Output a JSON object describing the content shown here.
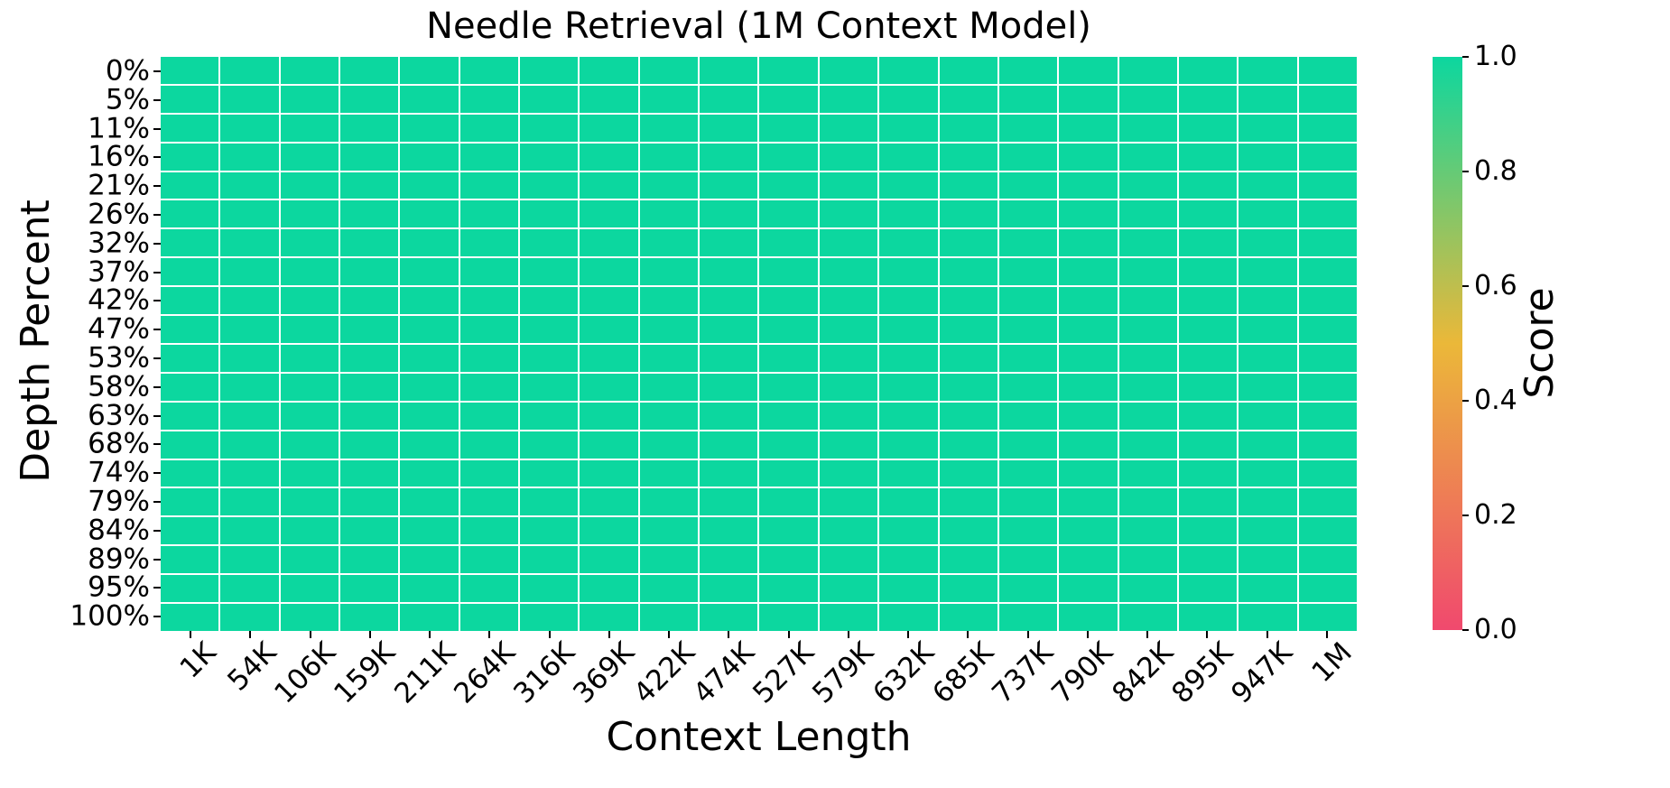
{
  "chart_data": {
    "type": "heatmap",
    "title": "Needle Retrieval (1M Context Model)",
    "xlabel": "Context Length",
    "ylabel": "Depth Percent",
    "x_categories": [
      "1K",
      "54K",
      "106K",
      "159K",
      "211K",
      "264K",
      "316K",
      "369K",
      "422K",
      "474K",
      "527K",
      "579K",
      "632K",
      "685K",
      "737K",
      "790K",
      "842K",
      "895K",
      "947K",
      "1M"
    ],
    "y_categories": [
      "0%",
      "5%",
      "11%",
      "16%",
      "21%",
      "26%",
      "32%",
      "37%",
      "42%",
      "47%",
      "53%",
      "58%",
      "63%",
      "68%",
      "74%",
      "79%",
      "84%",
      "89%",
      "95%",
      "100%"
    ],
    "values": [
      [
        1.0,
        1.0,
        1.0,
        1.0,
        1.0,
        1.0,
        1.0,
        1.0,
        1.0,
        1.0,
        1.0,
        1.0,
        1.0,
        1.0,
        1.0,
        1.0,
        1.0,
        1.0,
        1.0,
        1.0
      ],
      [
        1.0,
        1.0,
        1.0,
        1.0,
        1.0,
        1.0,
        1.0,
        1.0,
        1.0,
        1.0,
        1.0,
        1.0,
        1.0,
        1.0,
        1.0,
        1.0,
        1.0,
        1.0,
        1.0,
        1.0
      ],
      [
        1.0,
        1.0,
        1.0,
        1.0,
        1.0,
        1.0,
        1.0,
        1.0,
        1.0,
        1.0,
        1.0,
        1.0,
        1.0,
        1.0,
        1.0,
        1.0,
        1.0,
        1.0,
        1.0,
        1.0
      ],
      [
        1.0,
        1.0,
        1.0,
        1.0,
        1.0,
        1.0,
        1.0,
        1.0,
        1.0,
        1.0,
        1.0,
        1.0,
        1.0,
        1.0,
        1.0,
        1.0,
        1.0,
        1.0,
        1.0,
        1.0
      ],
      [
        1.0,
        1.0,
        1.0,
        1.0,
        1.0,
        1.0,
        1.0,
        1.0,
        1.0,
        1.0,
        1.0,
        1.0,
        1.0,
        1.0,
        1.0,
        1.0,
        1.0,
        1.0,
        1.0,
        1.0
      ],
      [
        1.0,
        1.0,
        1.0,
        1.0,
        1.0,
        1.0,
        1.0,
        1.0,
        1.0,
        1.0,
        1.0,
        1.0,
        1.0,
        1.0,
        1.0,
        1.0,
        1.0,
        1.0,
        1.0,
        1.0
      ],
      [
        1.0,
        1.0,
        1.0,
        1.0,
        1.0,
        1.0,
        1.0,
        1.0,
        1.0,
        1.0,
        1.0,
        1.0,
        1.0,
        1.0,
        1.0,
        1.0,
        1.0,
        1.0,
        1.0,
        1.0
      ],
      [
        1.0,
        1.0,
        1.0,
        1.0,
        1.0,
        1.0,
        1.0,
        1.0,
        1.0,
        1.0,
        1.0,
        1.0,
        1.0,
        1.0,
        1.0,
        1.0,
        1.0,
        1.0,
        1.0,
        1.0
      ],
      [
        1.0,
        1.0,
        1.0,
        1.0,
        1.0,
        1.0,
        1.0,
        1.0,
        1.0,
        1.0,
        1.0,
        1.0,
        1.0,
        1.0,
        1.0,
        1.0,
        1.0,
        1.0,
        1.0,
        1.0
      ],
      [
        1.0,
        1.0,
        1.0,
        1.0,
        1.0,
        1.0,
        1.0,
        1.0,
        1.0,
        1.0,
        1.0,
        1.0,
        1.0,
        1.0,
        1.0,
        1.0,
        1.0,
        1.0,
        1.0,
        1.0
      ],
      [
        1.0,
        1.0,
        1.0,
        1.0,
        1.0,
        1.0,
        1.0,
        1.0,
        1.0,
        1.0,
        1.0,
        1.0,
        1.0,
        1.0,
        1.0,
        1.0,
        1.0,
        1.0,
        1.0,
        1.0
      ],
      [
        1.0,
        1.0,
        1.0,
        1.0,
        1.0,
        1.0,
        1.0,
        1.0,
        1.0,
        1.0,
        1.0,
        1.0,
        1.0,
        1.0,
        1.0,
        1.0,
        1.0,
        1.0,
        1.0,
        1.0
      ],
      [
        1.0,
        1.0,
        1.0,
        1.0,
        1.0,
        1.0,
        1.0,
        1.0,
        1.0,
        1.0,
        1.0,
        1.0,
        1.0,
        1.0,
        1.0,
        1.0,
        1.0,
        1.0,
        1.0,
        1.0
      ],
      [
        1.0,
        1.0,
        1.0,
        1.0,
        1.0,
        1.0,
        1.0,
        1.0,
        1.0,
        1.0,
        1.0,
        1.0,
        1.0,
        1.0,
        1.0,
        1.0,
        1.0,
        1.0,
        1.0,
        1.0
      ],
      [
        1.0,
        1.0,
        1.0,
        1.0,
        1.0,
        1.0,
        1.0,
        1.0,
        1.0,
        1.0,
        1.0,
        1.0,
        1.0,
        1.0,
        1.0,
        1.0,
        1.0,
        1.0,
        1.0,
        1.0
      ],
      [
        1.0,
        1.0,
        1.0,
        1.0,
        1.0,
        1.0,
        1.0,
        1.0,
        1.0,
        1.0,
        1.0,
        1.0,
        1.0,
        1.0,
        1.0,
        1.0,
        1.0,
        1.0,
        1.0,
        1.0
      ],
      [
        1.0,
        1.0,
        1.0,
        1.0,
        1.0,
        1.0,
        1.0,
        1.0,
        1.0,
        1.0,
        1.0,
        1.0,
        1.0,
        1.0,
        1.0,
        1.0,
        1.0,
        1.0,
        1.0,
        1.0
      ],
      [
        1.0,
        1.0,
        1.0,
        1.0,
        1.0,
        1.0,
        1.0,
        1.0,
        1.0,
        1.0,
        1.0,
        1.0,
        1.0,
        1.0,
        1.0,
        1.0,
        1.0,
        1.0,
        1.0,
        1.0
      ],
      [
        1.0,
        1.0,
        1.0,
        1.0,
        1.0,
        1.0,
        1.0,
        1.0,
        1.0,
        1.0,
        1.0,
        1.0,
        1.0,
        1.0,
        1.0,
        1.0,
        1.0,
        1.0,
        1.0,
        1.0
      ],
      [
        1.0,
        1.0,
        1.0,
        1.0,
        1.0,
        1.0,
        1.0,
        1.0,
        1.0,
        1.0,
        1.0,
        1.0,
        1.0,
        1.0,
        1.0,
        1.0,
        1.0,
        1.0,
        1.0,
        1.0
      ]
    ],
    "value_range": [
      0.0,
      1.0
    ],
    "uniform_value": 1.0,
    "grid": true,
    "gridline_color": "#ffffff",
    "cell_color_at_max": "#0CD79F",
    "colorbar": {
      "label": "Score",
      "ticks": [
        "1.0",
        "0.8",
        "0.6",
        "0.4",
        "0.2",
        "0.0"
      ],
      "tick_values": [
        1.0,
        0.8,
        0.6,
        0.4,
        0.2,
        0.0
      ],
      "stops": [
        {
          "value": 0.0,
          "color": "#F0496E"
        },
        {
          "value": 0.5,
          "color": "#EBB839"
        },
        {
          "value": 1.0,
          "color": "#0CD79F"
        }
      ]
    }
  }
}
